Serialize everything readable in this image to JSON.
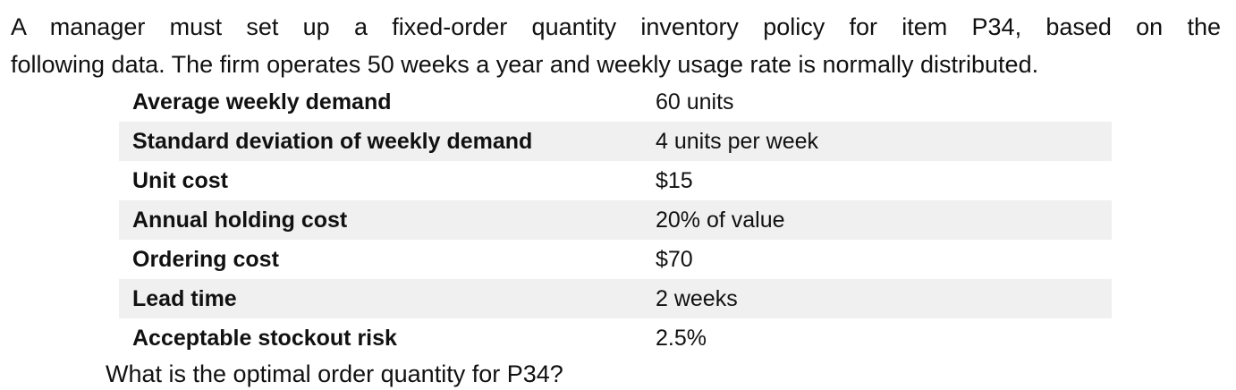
{
  "paragraph_lines": [
    "A manager must set up a fixed-order quantity inventory policy for item P34, based on the",
    "following data. The firm operates 50 weeks a year and weekly usage rate is normally distributed."
  ],
  "table": {
    "rows": [
      [
        "Average weekly demand",
        "60 units"
      ],
      [
        "Standard deviation of weekly demand",
        "4 units per week"
      ],
      [
        "Unit cost",
        "$15"
      ],
      [
        "Annual holding cost",
        "20% of value"
      ],
      [
        "Ordering cost",
        "$70"
      ],
      [
        "Lead time",
        "2 weeks"
      ],
      [
        "Acceptable stockout risk",
        "2.5%"
      ]
    ]
  },
  "question": "What is the optimal order quantity for P34?"
}
